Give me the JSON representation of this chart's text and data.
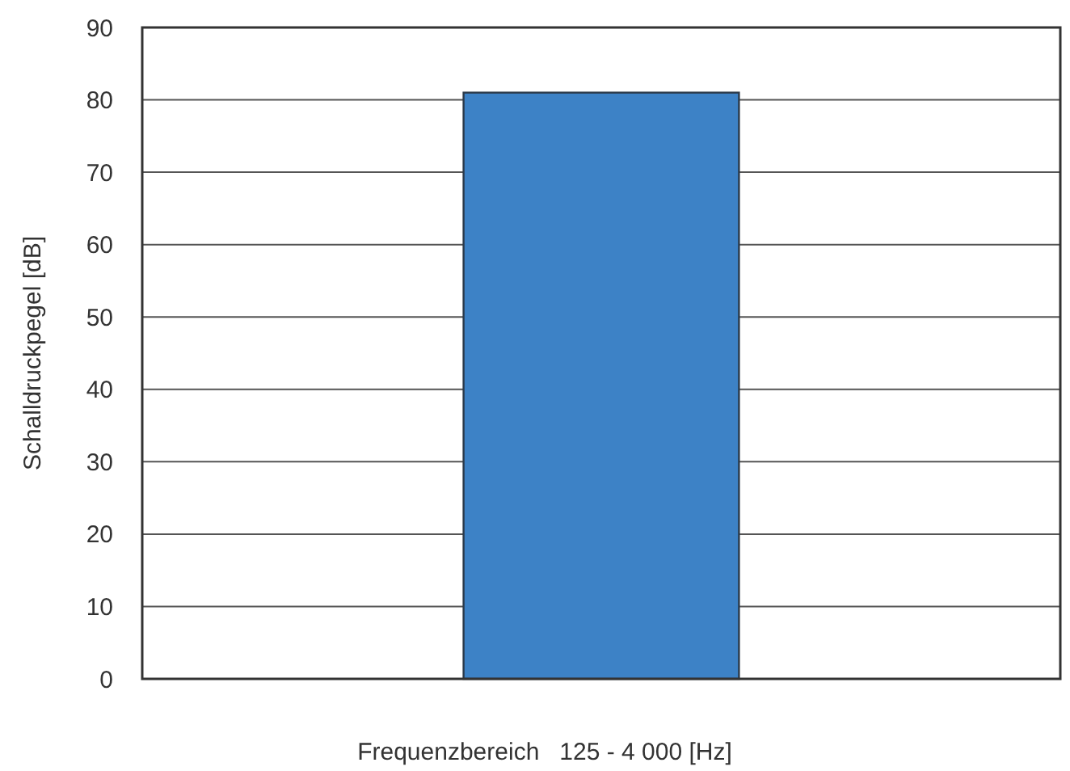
{
  "chart_data": {
    "type": "bar",
    "xlabel": "Frequenzbereich   125 - 4 000 [Hz]",
    "ylabel": "Schalldruckpegel [dB]",
    "categories": [
      null
    ],
    "values": [
      81
    ],
    "color": "#3d82c6",
    "ylim": [
      0,
      90
    ],
    "yticks": [
      0,
      10,
      20,
      30,
      40,
      50,
      60,
      70,
      80,
      90
    ],
    "grid": "y"
  }
}
